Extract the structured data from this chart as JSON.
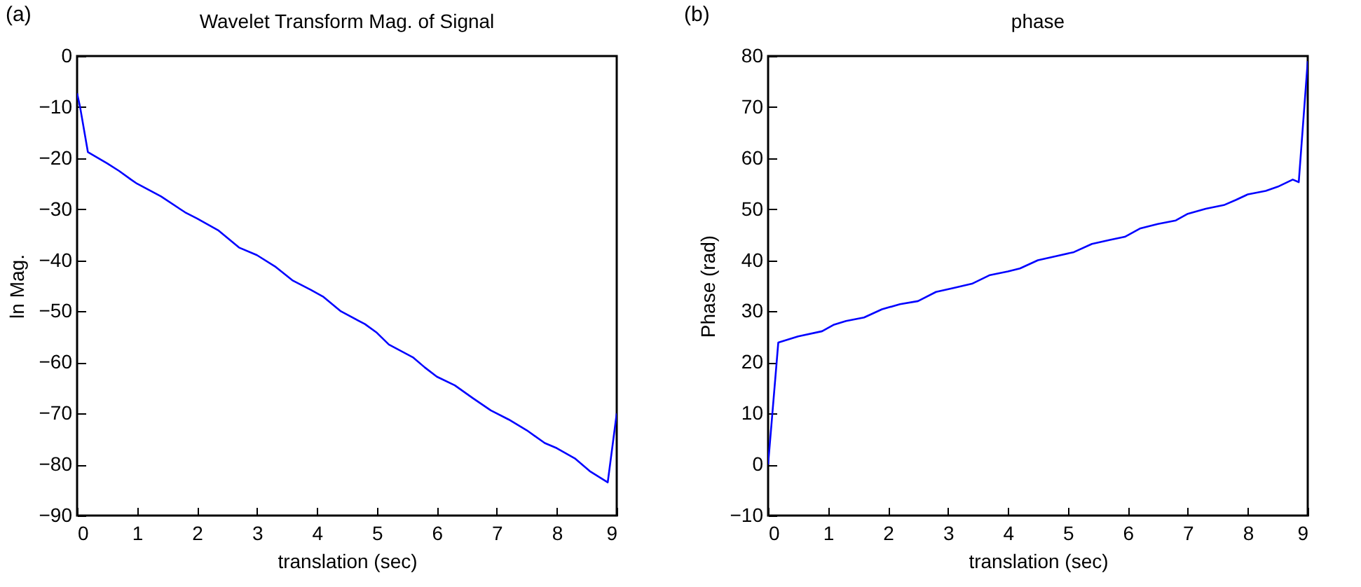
{
  "chart_data": [
    {
      "type": "line",
      "title": "Wavelet Transform Mag. of Signal",
      "xlabel": "translation (sec)",
      "ylabel": "ln Mag.",
      "annotations": [
        "(a)"
      ],
      "color": "#0000ff",
      "x": [
        0,
        0.05,
        0.18,
        0.5,
        0.7,
        0.9,
        1.0,
        1.4,
        1.8,
        2.0,
        2.35,
        2.7,
        3.0,
        3.3,
        3.6,
        3.9,
        4.1,
        4.4,
        4.8,
        5.0,
        5.2,
        5.6,
        5.8,
        6.0,
        6.3,
        6.6,
        6.9,
        7.2,
        7.5,
        7.8,
        8.0,
        8.3,
        8.55,
        8.85,
        9.0
      ],
      "values": [
        -7.3,
        -10,
        -18.8,
        -21,
        -22.5,
        -24.2,
        -25,
        -27.5,
        -30.6,
        -31.8,
        -34.1,
        -37.5,
        -39,
        -41.2,
        -44,
        -45.8,
        -47.1,
        -50,
        -52.5,
        -54.2,
        -56.5,
        -59,
        -61,
        -62.8,
        -64.5,
        -67,
        -69.4,
        -71.2,
        -73.3,
        -75.8,
        -76.8,
        -78.8,
        -81.3,
        -83.5,
        -70
      ],
      "xlim": [
        0,
        9
      ],
      "xticks": [
        0,
        1,
        2,
        3,
        4,
        5,
        6,
        7,
        8,
        9
      ],
      "ylim": [
        -90,
        0
      ],
      "yticks": [
        -90,
        -80,
        -70,
        -60,
        -50,
        -40,
        -30,
        -20,
        -10,
        0
      ]
    },
    {
      "type": "line",
      "title": "phase",
      "xlabel": "translation (sec)",
      "ylabel": "Phase (rad)",
      "annotations": [
        "(b)"
      ],
      "color": "#0000ff",
      "x": [
        0,
        0.17,
        0.5,
        0.9,
        1.1,
        1.3,
        1.6,
        1.9,
        2.2,
        2.5,
        2.8,
        3.1,
        3.4,
        3.7,
        4.0,
        4.2,
        4.5,
        4.8,
        5.1,
        5.4,
        5.7,
        5.95,
        6.2,
        6.5,
        6.8,
        7.0,
        7.3,
        7.6,
        7.8,
        8.0,
        8.3,
        8.5,
        8.75,
        8.85,
        9.0
      ],
      "values": [
        0,
        23.9,
        25.1,
        26.1,
        27.4,
        28.1,
        28.8,
        30.4,
        31.4,
        32,
        33.8,
        34.6,
        35.4,
        37.1,
        37.8,
        38.4,
        40,
        40.8,
        41.6,
        43.2,
        44,
        44.6,
        46.2,
        47.1,
        47.8,
        49.1,
        50.1,
        50.8,
        51.8,
        52.9,
        53.6,
        54.4,
        55.8,
        55.3,
        79
      ],
      "xlim": [
        0,
        9
      ],
      "xticks": [
        0,
        1,
        2,
        3,
        4,
        5,
        6,
        7,
        8,
        9
      ],
      "ylim": [
        -10,
        80
      ],
      "yticks": [
        -10,
        0,
        10,
        20,
        30,
        40,
        50,
        60,
        70,
        80
      ]
    }
  ]
}
